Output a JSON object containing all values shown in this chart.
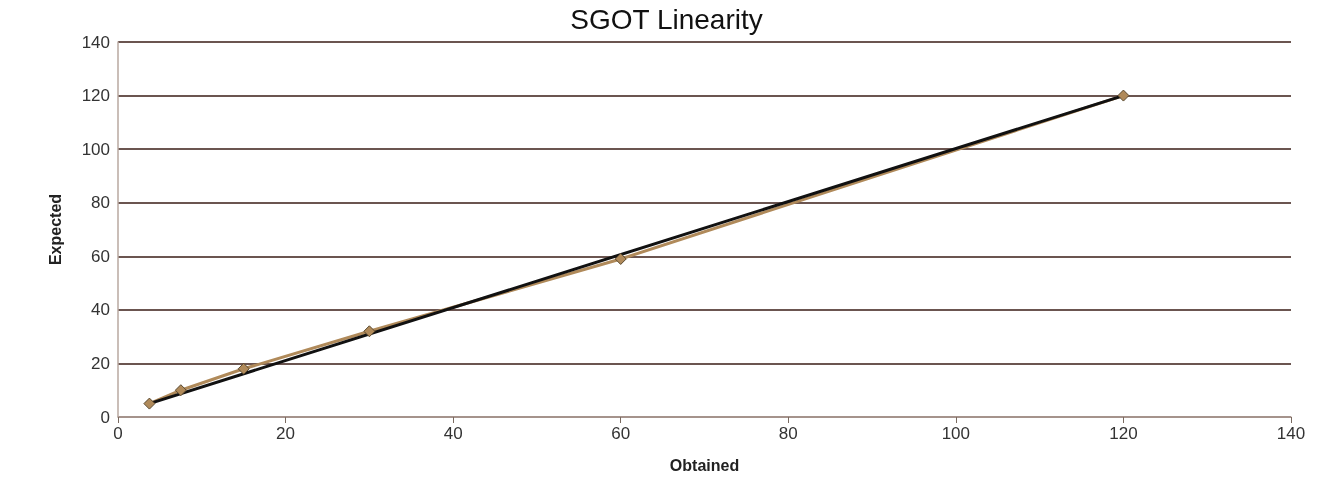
{
  "chart_data": {
    "type": "line",
    "title": "SGOT Linearity",
    "xlabel": "Obtained",
    "ylabel": "Expected",
    "series": [
      {
        "color": "#b08a5a",
        "marker": "diamond",
        "x": [
          3.75,
          7.5,
          15,
          30,
          60,
          120
        ],
        "values": [
          5,
          10,
          18,
          32,
          59,
          120
        ]
      },
      {
        "color": "#111111",
        "marker": "none",
        "x": [
          3.75,
          120
        ],
        "values": [
          5,
          120
        ]
      }
    ],
    "xlim": [
      0,
      140
    ],
    "xticks": [
      0,
      20,
      40,
      60,
      80,
      100,
      120,
      140
    ],
    "ylim": [
      0,
      140
    ],
    "yticks": [
      0,
      20,
      40,
      60,
      80,
      100,
      120,
      140
    ],
    "grid": "y"
  }
}
